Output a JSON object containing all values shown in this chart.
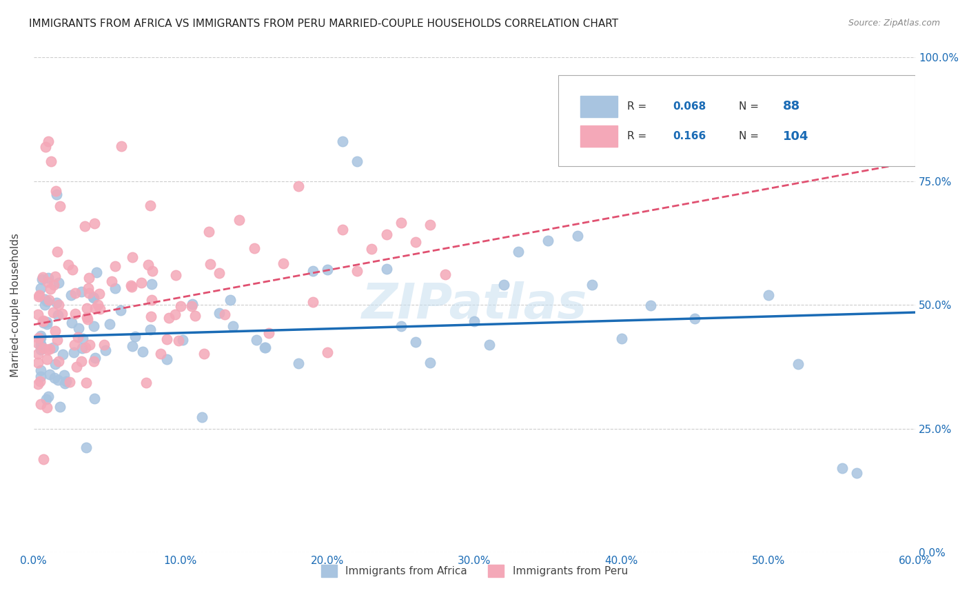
{
  "title": "IMMIGRANTS FROM AFRICA VS IMMIGRANTS FROM PERU MARRIED-COUPLE HOUSEHOLDS CORRELATION CHART",
  "source": "Source: ZipAtlas.com",
  "xlim": [
    0.0,
    0.6
  ],
  "ylim": [
    0.0,
    1.0
  ],
  "xtick_vals": [
    0.0,
    0.1,
    0.2,
    0.3,
    0.4,
    0.5,
    0.6
  ],
  "xtick_labels": [
    "0.0%",
    "10.0%",
    "20.0%",
    "30.0%",
    "40.0%",
    "50.0%",
    "60.0%"
  ],
  "ytick_vals": [
    0.0,
    0.25,
    0.5,
    0.75,
    1.0
  ],
  "ytick_labels": [
    "0.0%",
    "25.0%",
    "50.0%",
    "75.0%",
    "100.0%"
  ],
  "legend_bottom": [
    "Immigrants from Africa",
    "Immigrants from Peru"
  ],
  "legend_top_R_africa": "0.068",
  "legend_top_N_africa": "88",
  "legend_top_R_peru": "0.166",
  "legend_top_N_peru": "104",
  "africa_color": "#a8c4e0",
  "peru_color": "#f4a8b8",
  "africa_line_color": "#1a6bb5",
  "peru_line_color": "#e05070",
  "watermark": "ZIPatlas",
  "title_color": "#222222",
  "axis_label_color": "#1a6bb5",
  "ylabel": "Married-couple Households",
  "grid_color": "#cccccc",
  "africa_intercept": 0.435,
  "africa_slope": 0.083,
  "peru_intercept": 0.46,
  "peru_slope": 0.55
}
